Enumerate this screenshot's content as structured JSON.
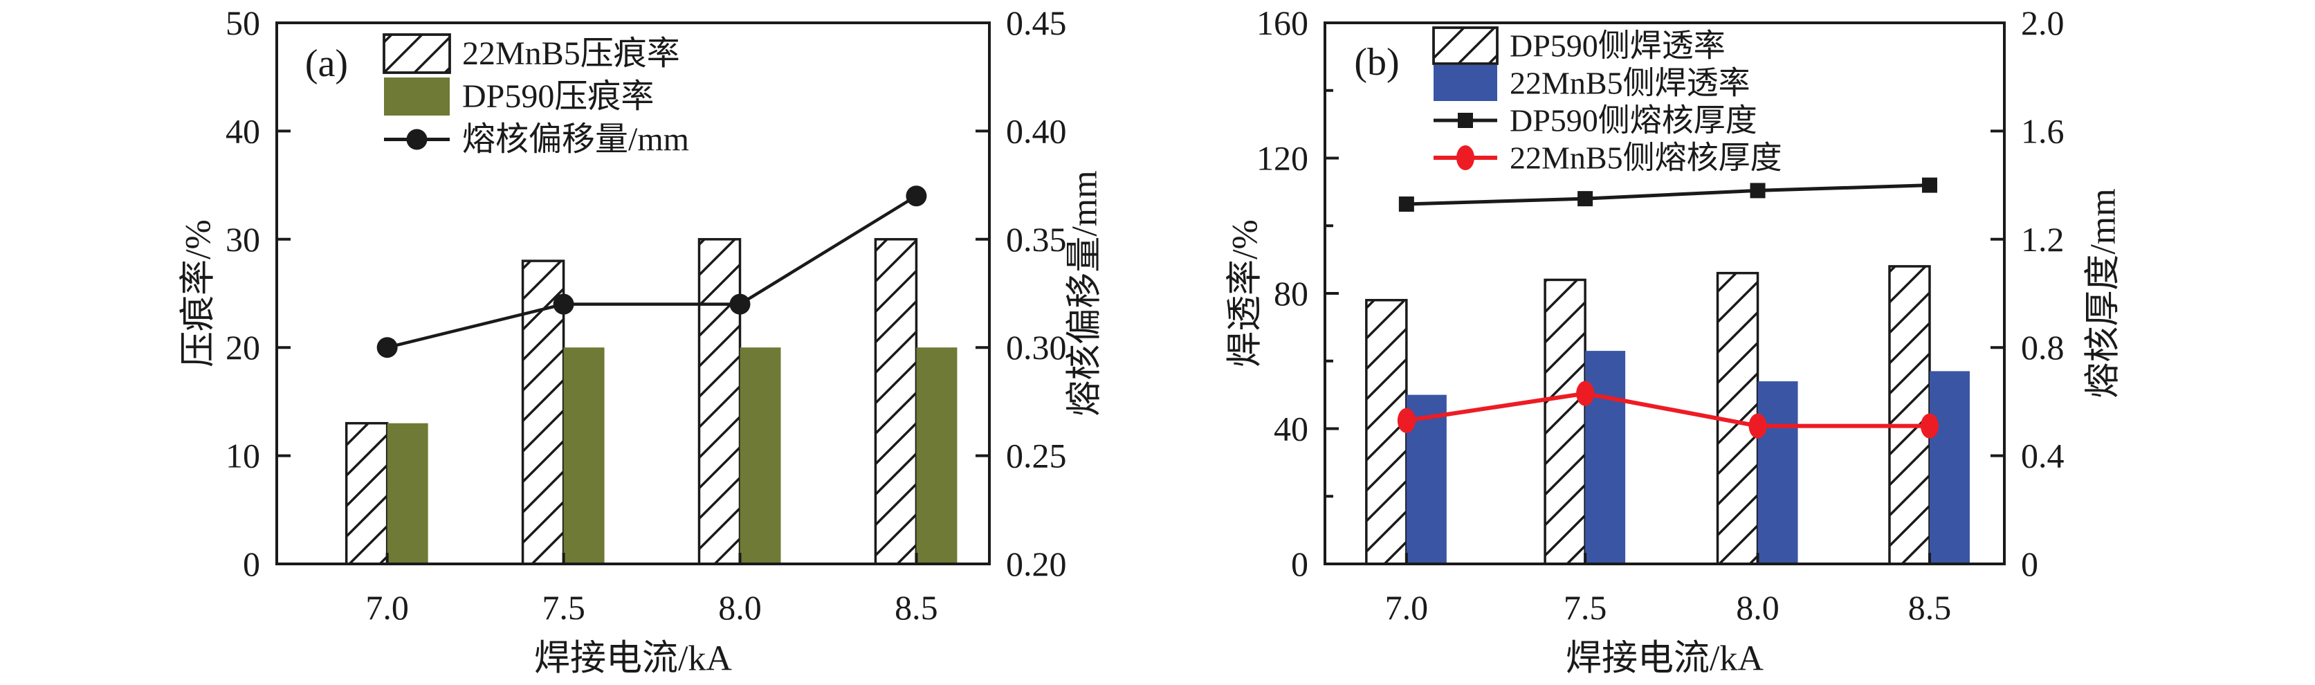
{
  "figure_title": "",
  "colors": {
    "axis": "#1a1a1a",
    "olive": "#6E7A35",
    "blue": "#3A55A4",
    "red": "#ED1C24",
    "black_line": "#1a1a1a",
    "background": "#ffffff"
  },
  "chart_data": [
    {
      "type": "bar",
      "panel_tag": "(a)",
      "categories": [
        "7.0",
        "7.5",
        "8.0",
        "8.5"
      ],
      "xlabel": "焊接电流/kA",
      "left_axis": {
        "label": "压痕率/%",
        "min": 0,
        "max": 50,
        "tick_labels": [
          "0",
          "10",
          "20",
          "30",
          "40",
          "50"
        ],
        "minor_ticks": []
      },
      "right_axis": {
        "label": "熔核偏移量/mm",
        "min": 0.2,
        "max": 0.45,
        "tick_labels": [
          "0.20",
          "0.25",
          "0.30",
          "0.35",
          "0.40",
          "0.45"
        ],
        "minor_ticks": []
      },
      "series": [
        {
          "name": "22MnB5压痕率",
          "type": "bar",
          "style": "hatched",
          "color": "#1a1a1a",
          "axis": "left",
          "values": [
            13,
            28,
            30,
            30
          ]
        },
        {
          "name": "DP590压痕率",
          "type": "bar",
          "style": "solid",
          "color": "#6E7A35",
          "axis": "left",
          "values": [
            13,
            20,
            20,
            20
          ]
        },
        {
          "name": "熔核偏移量/mm",
          "type": "line",
          "marker": "circle",
          "color": "#1a1a1a",
          "axis": "right",
          "values": [
            0.3,
            0.32,
            0.32,
            0.37
          ]
        }
      ]
    },
    {
      "type": "bar",
      "panel_tag": "(b)",
      "categories": [
        "7.0",
        "7.5",
        "8.0",
        "8.5"
      ],
      "xlabel": "焊接电流/kA",
      "left_axis": {
        "label": "焊透率/%",
        "min": 0,
        "max": 160,
        "tick_labels": [
          "0",
          "40",
          "80",
          "120",
          "160"
        ],
        "minor_ticks": [
          20,
          60,
          100,
          140
        ]
      },
      "right_axis": {
        "label": "熔核厚度/mm",
        "min": 0,
        "max": 2.0,
        "tick_labels": [
          "0",
          "0.4",
          "0.8",
          "1.2",
          "1.6",
          "2.0"
        ],
        "minor_ticks": []
      },
      "series": [
        {
          "name": "DP590侧焊透率",
          "type": "bar",
          "style": "hatched",
          "color": "#1a1a1a",
          "axis": "left",
          "values": [
            78,
            84,
            86,
            88
          ]
        },
        {
          "name": "22MnB5侧焊透率",
          "type": "bar",
          "style": "solid",
          "color": "#3A55A4",
          "axis": "left",
          "values": [
            50,
            63,
            54,
            57
          ]
        },
        {
          "name": "DP590侧熔核厚度",
          "type": "line",
          "marker": "square",
          "color": "#1a1a1a",
          "axis": "right",
          "values": [
            1.33,
            1.35,
            1.38,
            1.4
          ]
        },
        {
          "name": "22MnB5侧熔核厚度",
          "type": "line",
          "marker": "ellipse",
          "color": "#ED1C24",
          "axis": "right",
          "values": [
            0.53,
            0.63,
            0.51,
            0.51
          ]
        }
      ]
    }
  ]
}
